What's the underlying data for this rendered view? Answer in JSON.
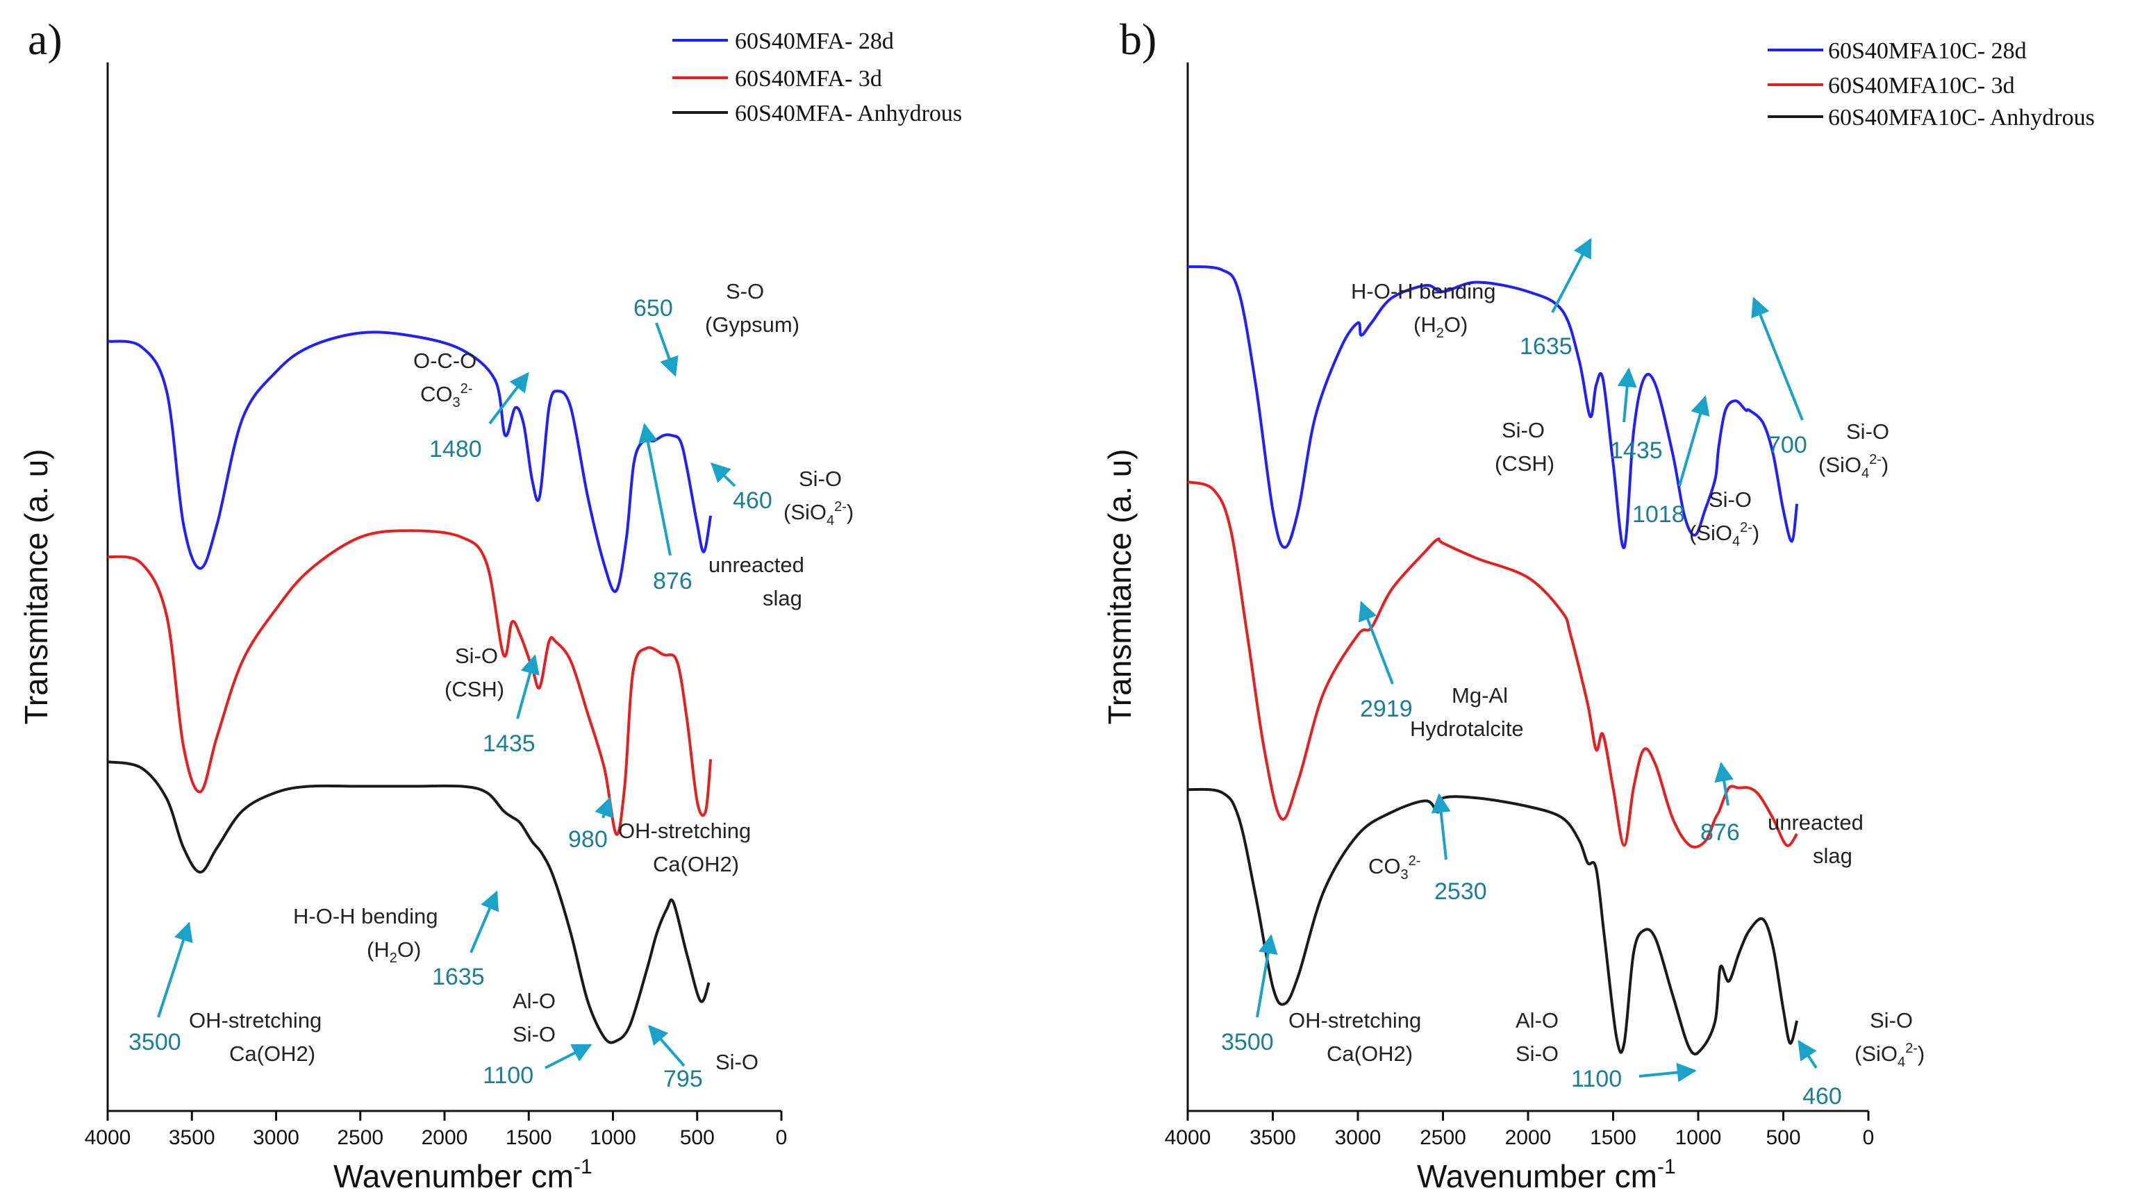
{
  "chart_data": [
    {
      "type": "line",
      "panel": "a)",
      "xlabel": "Wavenumber cm",
      "xlabel_sup": "-1",
      "ylabel": "Transmitance (a. u)",
      "xlim": [
        4000,
        0
      ],
      "xticks": [
        "4000",
        "3500",
        "3000",
        "2500",
        "2000",
        "1500",
        "1000",
        "500",
        "0"
      ],
      "grid": false,
      "legend_position": "top-right",
      "series": [
        {
          "name": "60S40MFA- 28d",
          "color": "#1f1fff",
          "offset": 2.3,
          "amp": 1.4,
          "points": [
            [
              4000,
              0.96
            ],
            [
              3800,
              0.94
            ],
            [
              3650,
              0.78
            ],
            [
              3550,
              0.3
            ],
            [
              3450,
              0.14
            ],
            [
              3350,
              0.3
            ],
            [
              3200,
              0.68
            ],
            [
              3000,
              0.85
            ],
            [
              2800,
              0.94
            ],
            [
              2500,
              0.99
            ],
            [
              2200,
              0.98
            ],
            [
              1900,
              0.93
            ],
            [
              1700,
              0.82
            ],
            [
              1640,
              0.62
            ],
            [
              1580,
              0.72
            ],
            [
              1530,
              0.66
            ],
            [
              1480,
              0.46
            ],
            [
              1435,
              0.4
            ],
            [
              1380,
              0.72
            ],
            [
              1330,
              0.78
            ],
            [
              1250,
              0.72
            ],
            [
              1150,
              0.4
            ],
            [
              1050,
              0.15
            ],
            [
              980,
              0.06
            ],
            [
              920,
              0.25
            ],
            [
              876,
              0.52
            ],
            [
              820,
              0.6
            ],
            [
              760,
              0.6
            ],
            [
              700,
              0.62
            ],
            [
              650,
              0.62
            ],
            [
              600,
              0.6
            ],
            [
              560,
              0.5
            ],
            [
              500,
              0.3
            ],
            [
              460,
              0.2
            ],
            [
              420,
              0.33
            ]
          ]
        },
        {
          "name": "60S40MFA- 3d",
          "color": "#e62020",
          "offset": 1.07,
          "amp": 1.65,
          "points": [
            [
              4000,
              0.9
            ],
            [
              3800,
              0.88
            ],
            [
              3650,
              0.72
            ],
            [
              3550,
              0.32
            ],
            [
              3450,
              0.18
            ],
            [
              3350,
              0.35
            ],
            [
              3200,
              0.58
            ],
            [
              3000,
              0.74
            ],
            [
              2800,
              0.86
            ],
            [
              2500,
              0.96
            ],
            [
              2200,
              0.98
            ],
            [
              1900,
              0.96
            ],
            [
              1750,
              0.88
            ],
            [
              1650,
              0.6
            ],
            [
              1600,
              0.7
            ],
            [
              1550,
              0.66
            ],
            [
              1480,
              0.56
            ],
            [
              1435,
              0.5
            ],
            [
              1380,
              0.64
            ],
            [
              1340,
              0.64
            ],
            [
              1250,
              0.58
            ],
            [
              1150,
              0.42
            ],
            [
              1050,
              0.25
            ],
            [
              980,
              0.05
            ],
            [
              930,
              0.2
            ],
            [
              880,
              0.55
            ],
            [
              800,
              0.62
            ],
            [
              700,
              0.6
            ],
            [
              620,
              0.58
            ],
            [
              560,
              0.4
            ],
            [
              500,
              0.15
            ],
            [
              450,
              0.12
            ],
            [
              420,
              0.28
            ]
          ]
        },
        {
          "name": "60S40MFA- Anhydrous",
          "color": "#1a1a1a",
          "offset": 0.0,
          "amp": 1.55,
          "points": [
            [
              4000,
              0.98
            ],
            [
              3800,
              0.96
            ],
            [
              3650,
              0.86
            ],
            [
              3550,
              0.7
            ],
            [
              3450,
              0.62
            ],
            [
              3350,
              0.7
            ],
            [
              3200,
              0.82
            ],
            [
              3000,
              0.88
            ],
            [
              2800,
              0.9
            ],
            [
              2500,
              0.9
            ],
            [
              2200,
              0.9
            ],
            [
              1900,
              0.9
            ],
            [
              1750,
              0.88
            ],
            [
              1650,
              0.82
            ],
            [
              1600,
              0.8
            ],
            [
              1550,
              0.78
            ],
            [
              1480,
              0.72
            ],
            [
              1420,
              0.68
            ],
            [
              1350,
              0.6
            ],
            [
              1250,
              0.42
            ],
            [
              1150,
              0.2
            ],
            [
              1050,
              0.08
            ],
            [
              980,
              0.07
            ],
            [
              900,
              0.12
            ],
            [
              800,
              0.3
            ],
            [
              740,
              0.42
            ],
            [
              680,
              0.5
            ],
            [
              640,
              0.52
            ],
            [
              560,
              0.35
            ],
            [
              480,
              0.2
            ],
            [
              430,
              0.26
            ]
          ]
        }
      ],
      "annotations": [
        {
          "num": "650",
          "text": [
            "S-O",
            "(Gypsum)"
          ]
        },
        {
          "num": "1480",
          "text": [
            "O-C-O",
            "CO3 2-"
          ]
        },
        {
          "num": "460",
          "text": [
            "Si-O",
            "(SiO4 2-)"
          ]
        },
        {
          "num": "876",
          "text": [
            "unreacted",
            "slag"
          ]
        },
        {
          "num": "1435",
          "text": [
            "Si-O",
            "(CSH)"
          ]
        },
        {
          "num": "980",
          "text": [
            "OH-stretching",
            "Ca(OH2)"
          ]
        },
        {
          "num": "1635",
          "text": [
            "H-O-H bending",
            "(H2O)"
          ]
        },
        {
          "num": "3500",
          "text": [
            "OH-stretching",
            "Ca(OH2)"
          ]
        },
        {
          "num": "1100",
          "text": [
            "Al-O",
            "Si-O"
          ]
        },
        {
          "num": "795",
          "text": [
            "Si-O"
          ]
        }
      ]
    },
    {
      "type": "line",
      "panel": "b)",
      "xlabel": "Wavenumber cm",
      "xlabel_sup": "-1",
      "ylabel": "Transmitance (a. u)",
      "xlim": [
        4000,
        0
      ],
      "xticks": [
        "4000",
        "3500",
        "3000",
        "2500",
        "2000",
        "1500",
        "1000",
        "500",
        "0"
      ],
      "grid": false,
      "legend_position": "top-right",
      "series": [
        {
          "name": "60S40MFA10C- 28d",
          "color": "#1f1fff",
          "offset": 2.45,
          "amp": 1.55,
          "points": [
            [
              4000,
              0.98
            ],
            [
              3800,
              0.97
            ],
            [
              3700,
              0.9
            ],
            [
              3600,
              0.6
            ],
            [
              3500,
              0.2
            ],
            [
              3430,
              0.08
            ],
            [
              3350,
              0.2
            ],
            [
              3250,
              0.5
            ],
            [
              3100,
              0.72
            ],
            [
              3000,
              0.8
            ],
            [
              2980,
              0.76
            ],
            [
              2920,
              0.8
            ],
            [
              2800,
              0.88
            ],
            [
              2600,
              0.92
            ],
            [
              2500,
              0.9
            ],
            [
              2300,
              0.93
            ],
            [
              2000,
              0.9
            ],
            [
              1800,
              0.84
            ],
            [
              1700,
              0.68
            ],
            [
              1635,
              0.5
            ],
            [
              1600,
              0.6
            ],
            [
              1560,
              0.62
            ],
            [
              1500,
              0.35
            ],
            [
              1435,
              0.08
            ],
            [
              1380,
              0.45
            ],
            [
              1320,
              0.62
            ],
            [
              1250,
              0.6
            ],
            [
              1150,
              0.38
            ],
            [
              1080,
              0.18
            ],
            [
              1018,
              0.12
            ],
            [
              960,
              0.2
            ],
            [
              900,
              0.3
            ],
            [
              880,
              0.4
            ],
            [
              840,
              0.52
            ],
            [
              780,
              0.55
            ],
            [
              720,
              0.52
            ],
            [
              700,
              0.52
            ],
            [
              620,
              0.48
            ],
            [
              560,
              0.38
            ],
            [
              500,
              0.2
            ],
            [
              450,
              0.1
            ],
            [
              420,
              0.22
            ]
          ]
        },
        {
          "name": "60S40MFA10C- 3d",
          "color": "#e62020",
          "offset": 1.0,
          "amp": 1.9,
          "points": [
            [
              4000,
              1.0
            ],
            [
              3850,
              0.98
            ],
            [
              3750,
              0.88
            ],
            [
              3650,
              0.6
            ],
            [
              3550,
              0.3
            ],
            [
              3450,
              0.12
            ],
            [
              3350,
              0.22
            ],
            [
              3200,
              0.45
            ],
            [
              3000,
              0.6
            ],
            [
              2919,
              0.62
            ],
            [
              2800,
              0.72
            ],
            [
              2600,
              0.82
            ],
            [
              2530,
              0.85
            ],
            [
              2500,
              0.84
            ],
            [
              2300,
              0.8
            ],
            [
              2000,
              0.75
            ],
            [
              1800,
              0.66
            ],
            [
              1750,
              0.6
            ],
            [
              1650,
              0.42
            ],
            [
              1600,
              0.3
            ],
            [
              1560,
              0.34
            ],
            [
              1500,
              0.2
            ],
            [
              1435,
              0.05
            ],
            [
              1380,
              0.2
            ],
            [
              1320,
              0.3
            ],
            [
              1250,
              0.26
            ],
            [
              1150,
              0.12
            ],
            [
              1050,
              0.05
            ],
            [
              960,
              0.06
            ],
            [
              900,
              0.12
            ],
            [
              876,
              0.14
            ],
            [
              820,
              0.2
            ],
            [
              760,
              0.2
            ],
            [
              700,
              0.2
            ],
            [
              640,
              0.18
            ],
            [
              560,
              0.12
            ],
            [
              480,
              0.05
            ],
            [
              420,
              0.08
            ]
          ]
        },
        {
          "name": "60S40MFA10C- Anhydrous",
          "color": "#1a1a1a",
          "offset": 0.0,
          "amp": 1.4,
          "points": [
            [
              4000,
              0.98
            ],
            [
              3800,
              0.97
            ],
            [
              3700,
              0.88
            ],
            [
              3600,
              0.6
            ],
            [
              3500,
              0.28
            ],
            [
              3430,
              0.22
            ],
            [
              3350,
              0.32
            ],
            [
              3200,
              0.62
            ],
            [
              3000,
              0.82
            ],
            [
              2800,
              0.9
            ],
            [
              2600,
              0.94
            ],
            [
              2530,
              0.9
            ],
            [
              2500,
              0.95
            ],
            [
              2300,
              0.95
            ],
            [
              2000,
              0.92
            ],
            [
              1800,
              0.88
            ],
            [
              1700,
              0.8
            ],
            [
              1650,
              0.72
            ],
            [
              1600,
              0.7
            ],
            [
              1550,
              0.45
            ],
            [
              1480,
              0.1
            ],
            [
              1435,
              0.08
            ],
            [
              1380,
              0.4
            ],
            [
              1320,
              0.48
            ],
            [
              1250,
              0.45
            ],
            [
              1150,
              0.25
            ],
            [
              1050,
              0.06
            ],
            [
              980,
              0.06
            ],
            [
              900,
              0.16
            ],
            [
              870,
              0.35
            ],
            [
              820,
              0.3
            ],
            [
              760,
              0.4
            ],
            [
              700,
              0.48
            ],
            [
              620,
              0.52
            ],
            [
              560,
              0.42
            ],
            [
              500,
              0.2
            ],
            [
              460,
              0.08
            ],
            [
              420,
              0.16
            ]
          ]
        }
      ],
      "annotations": [
        {
          "num": "1635",
          "text": [
            "H-O-H bending",
            "(H2O)"
          ]
        },
        {
          "num": "1435",
          "text": [
            "Si-O",
            "(CSH)"
          ]
        },
        {
          "num": "1018",
          "text": [
            "Si-O",
            "(SiO4 2-)"
          ]
        },
        {
          "num": "700",
          "text": [
            "Si-O",
            "(SiO4 2-)"
          ]
        },
        {
          "num": "2919",
          "text": [
            "Mg-Al",
            "Hydrotalcite"
          ]
        },
        {
          "num": "876",
          "text": [
            "unreacted",
            "slag"
          ]
        },
        {
          "num": "2530",
          "text": [
            "CO3 2-"
          ]
        },
        {
          "num": "3500",
          "text": [
            "OH-stretching",
            "Ca(OH2)"
          ]
        },
        {
          "num": "1100",
          "text": [
            "Al-O",
            "Si-O"
          ]
        },
        {
          "num": "460",
          "text": [
            "Si-O",
            "(SiO4 2-)"
          ]
        }
      ]
    }
  ]
}
